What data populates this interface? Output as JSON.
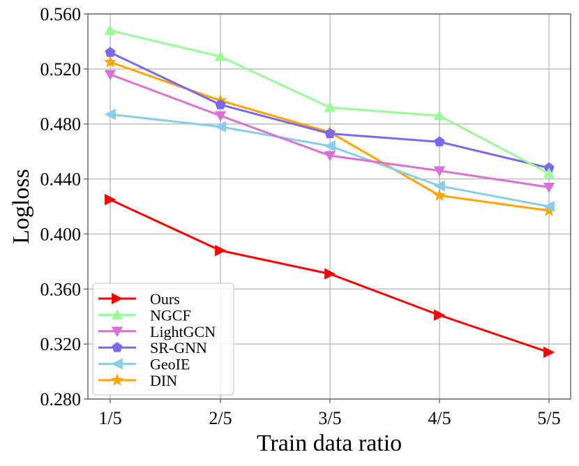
{
  "chart_data": {
    "type": "line",
    "xlabel": "Train data ratio",
    "ylabel": "Logloss",
    "categories": [
      "1/5",
      "2/5",
      "3/5",
      "4/5",
      "5/5"
    ],
    "ylim": [
      0.28,
      0.56
    ],
    "yticks": [
      "0.280",
      "0.320",
      "0.360",
      "0.400",
      "0.440",
      "0.480",
      "0.520",
      "0.560"
    ],
    "grid": true,
    "legend_position": "lower-left",
    "series": [
      {
        "name": "Ours",
        "color": "#ff0000",
        "marker": "triangle-right",
        "values": [
          0.425,
          0.388,
          0.371,
          0.341,
          0.314
        ]
      },
      {
        "name": "NGCF",
        "color": "#98fb98",
        "marker": "triangle-up",
        "values": [
          0.548,
          0.529,
          0.492,
          0.486,
          0.444
        ]
      },
      {
        "name": "LightGCN",
        "color": "#da70d6",
        "marker": "triangle-down",
        "values": [
          0.516,
          0.486,
          0.457,
          0.446,
          0.434
        ]
      },
      {
        "name": "SR-GNN",
        "color": "#7b68ee",
        "marker": "pentagon",
        "values": [
          0.532,
          0.494,
          0.473,
          0.467,
          0.448
        ]
      },
      {
        "name": "GeoIE",
        "color": "#87ceeb",
        "marker": "triangle-left",
        "values": [
          0.487,
          0.478,
          0.464,
          0.435,
          0.42
        ]
      },
      {
        "name": "DIN",
        "color": "#ffa500",
        "marker": "star",
        "values": [
          0.525,
          0.497,
          0.474,
          0.428,
          0.417
        ]
      }
    ]
  }
}
